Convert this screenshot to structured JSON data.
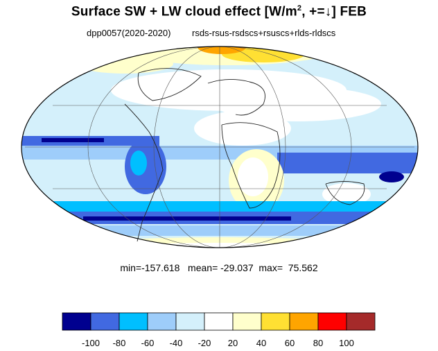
{
  "title": {
    "main": "Surface SW + LW cloud effect [W/m",
    "sup": "2",
    "rest": ", +=↓]  FEB"
  },
  "subtitle_left": "dpp0057(2020-2020)",
  "subtitle_right": "rsds-rsus-rsdscs+rsuscs+rlds-rldscs",
  "stats": {
    "text": "min=-157.618   mean= -29.037  max=  75.562",
    "min": -157.618,
    "mean": -29.037,
    "max": 75.562
  },
  "colorbar": {
    "labels": [
      "-100",
      "-80",
      "-60",
      "-40",
      "-20",
      "20",
      "40",
      "60",
      "80",
      "100"
    ],
    "colors": [
      "#00008f",
      "#4169e1",
      "#00bfff",
      "#9ecdfa",
      "#d4f0fb",
      "#ffffff",
      "#ffffcc",
      "#ffe033",
      "#ffa500",
      "#ff0000",
      "#a52a2a"
    ]
  },
  "map": {
    "projection": "mollweide",
    "palette_note_colors": {
      "ocean_bands": "#4169e1",
      "deep": "#00008f",
      "light": "#9ecdfa",
      "pale": "#d4f0fb",
      "warm": "#ffe033"
    }
  }
}
